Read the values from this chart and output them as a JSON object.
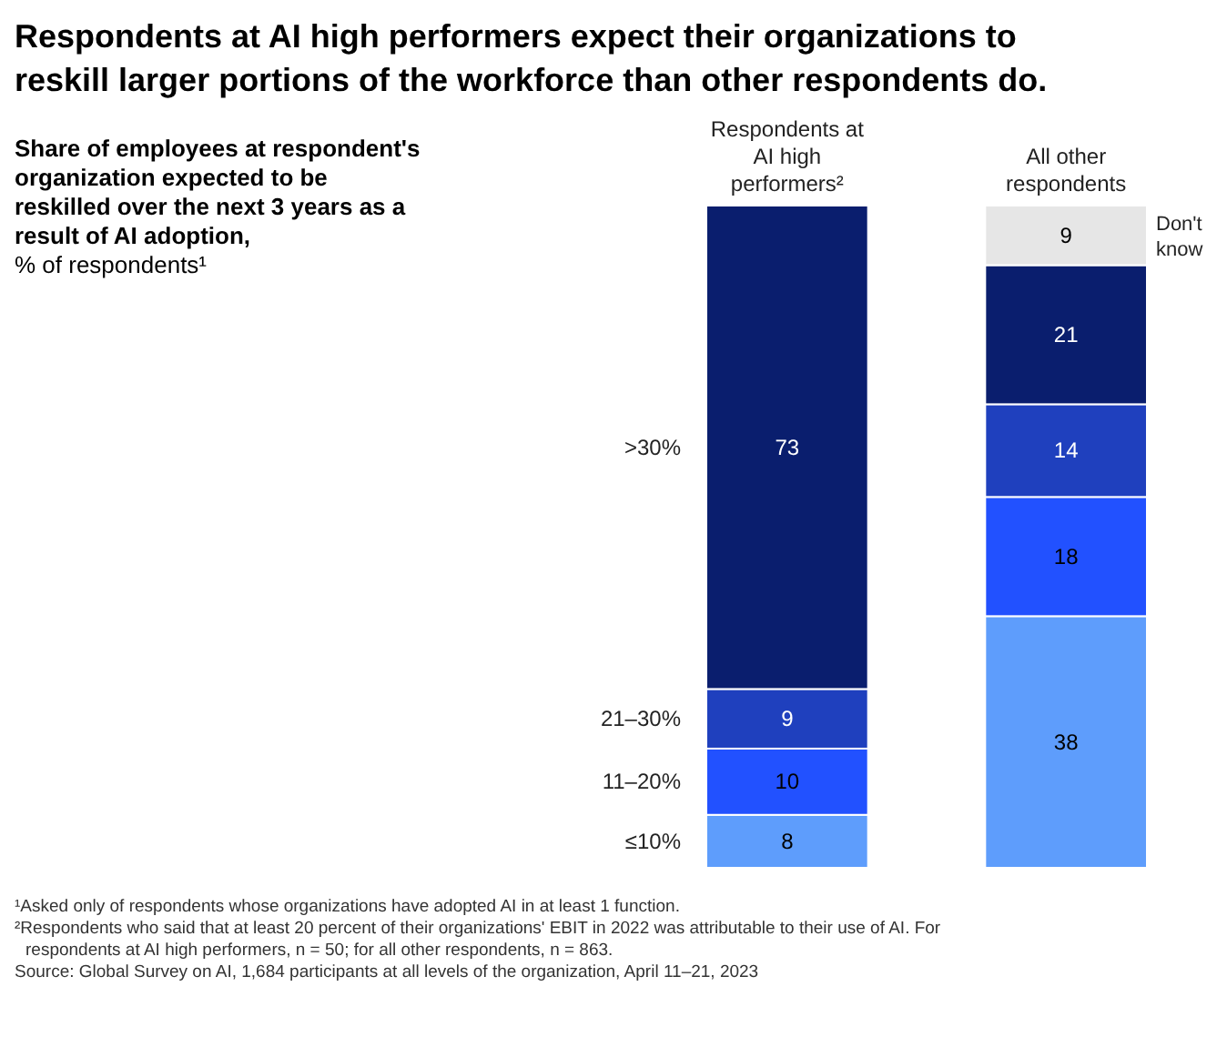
{
  "chart_data": {
    "type": "bar",
    "stacked": true,
    "data_labels": true,
    "title": "Respondents at AI high performers expect their organizations to reskill larger portions of the workforce than other respondents do.",
    "subtitle": "Share of employees at respondent's organization expected to be reskilled over the next 3 years as a result of AI adoption, % of respondents¹",
    "categories": [
      "Respondents at AI high performers²",
      "All other respondents"
    ],
    "series": [
      {
        "name": "≤10%",
        "color": "#5e9dfc",
        "values": [
          8,
          38
        ]
      },
      {
        "name": "11–20%",
        "color": "#2251ff",
        "values": [
          10,
          18
        ]
      },
      {
        "name": "21–30%",
        "color": "#1f40be",
        "values": [
          9,
          14
        ]
      },
      {
        "name": ">30%",
        "color": "#0a1e6e",
        "values": [
          73,
          21
        ]
      },
      {
        "name": "Don't know",
        "color": "#e6e6e6",
        "values": [
          null,
          9
        ]
      }
    ],
    "annotations": [
      "¹Asked only of respondents whose organizations have adopted AI in at least 1 function.",
      "²Respondents who said that at least 20 percent of their organizations' EBIT in 2022 was attributable to their use of AI. For respondents at AI high performers, n = 50; for all other respondents, n = 863.",
      "Source: Global Survey on AI, 1,684 participants at all levels of the organization, April 11–21, 2023"
    ]
  }
}
